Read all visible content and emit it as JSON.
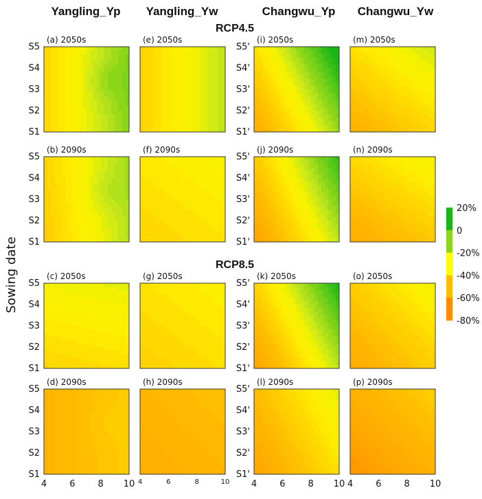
{
  "chart_data": {
    "type": "heatmap",
    "description_axis_x": "x axis values shown as ticks 4, 6, 8, 10",
    "column_titles": [
      "Yangling_Yp",
      "Yangling_Yw",
      "Changwu_Yp",
      "Changwu_Yw"
    ],
    "scenarios": [
      "RCP4.5",
      "RCP8.5"
    ],
    "ylabel": "Sowing date",
    "y_ticks_yangling": [
      "S5",
      "S4",
      "S3",
      "S2",
      "S1"
    ],
    "y_ticks_changwu": [
      "S5'",
      "S4'",
      "S3'",
      "S2'",
      "S1'"
    ],
    "x_ticks": [
      "4",
      "6",
      "8",
      "10"
    ],
    "x_range": [
      4,
      10
    ],
    "legend": {
      "labels": [
        "20%",
        "0",
        "-20%",
        "-40%",
        "-60%",
        "-80%"
      ],
      "colors": [
        "#18b418",
        "#8cd61a",
        "#ffff00",
        "#ffbf00",
        "#ff8c00"
      ],
      "range": [
        -80,
        20
      ]
    },
    "panels": [
      {
        "label": "(a) 2050s",
        "column": 0,
        "row": 0,
        "mean": -16,
        "dx": 18,
        "dy": 0,
        "bump": 6
      },
      {
        "label": "(e) 2050s",
        "column": 1,
        "row": 0,
        "mean": -22,
        "dx": 14,
        "dy": 0,
        "bump": 0
      },
      {
        "label": "(i) 2050s",
        "column": 2,
        "row": 0,
        "mean": -16,
        "dx": 28,
        "dy": 14,
        "bump": 0
      },
      {
        "label": "(m) 2050s",
        "column": 3,
        "row": 0,
        "mean": -32,
        "dx": 10,
        "dy": 12,
        "bump": 0
      },
      {
        "label": "(b) 2090s",
        "column": 0,
        "row": 1,
        "mean": -21,
        "dx": 16,
        "dy": 2,
        "bump": 5
      },
      {
        "label": "(f) 2090s",
        "column": 1,
        "row": 1,
        "mean": -28,
        "dx": 3,
        "dy": 4,
        "bump": 0
      },
      {
        "label": "(j) 2090s",
        "column": 2,
        "row": 1,
        "mean": -24,
        "dx": 28,
        "dy": 12,
        "bump": 0
      },
      {
        "label": "(n) 2090s",
        "column": 3,
        "row": 1,
        "mean": -37,
        "dx": 8,
        "dy": 12,
        "bump": 0
      },
      {
        "label": "(c) 2050s",
        "column": 0,
        "row": 2,
        "mean": -25,
        "dx": 2,
        "dy": 8,
        "bump": 0
      },
      {
        "label": "(g) 2050s",
        "column": 1,
        "row": 2,
        "mean": -30,
        "dx": 3,
        "dy": 4,
        "bump": 0
      },
      {
        "label": "(k) 2050s",
        "column": 2,
        "row": 2,
        "mean": -22,
        "dx": 28,
        "dy": 14,
        "bump": 0
      },
      {
        "label": "(o) 2050s",
        "column": 3,
        "row": 2,
        "mean": -38,
        "dx": 10,
        "dy": 10,
        "bump": 0
      },
      {
        "label": "(d) 2090s",
        "column": 0,
        "row": 3,
        "mean": -45,
        "dx": 6,
        "dy": 0,
        "bump": 2
      },
      {
        "label": "(h) 2090s",
        "column": 1,
        "row": 3,
        "mean": -50,
        "dx": 3,
        "dy": 3,
        "bump": 0
      },
      {
        "label": "(l) 2090s",
        "column": 2,
        "row": 3,
        "mean": -38,
        "dx": 16,
        "dy": 8,
        "bump": 0
      },
      {
        "label": "(p) 2090s",
        "column": 3,
        "row": 3,
        "mean": -53,
        "dx": 8,
        "dy": 8,
        "bump": 0
      }
    ]
  }
}
